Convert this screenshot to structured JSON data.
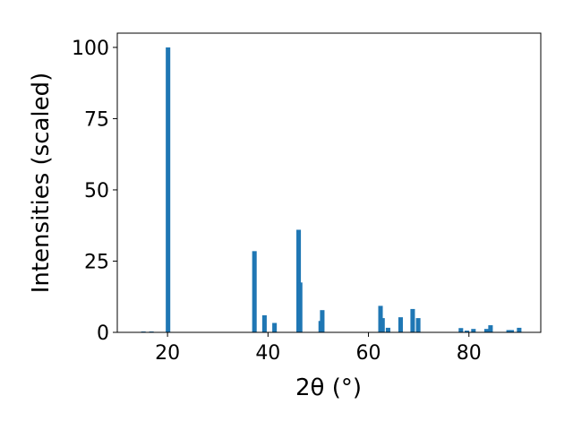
{
  "chart_data": {
    "type": "bar",
    "x_label": "2θ (°)",
    "y_label": "Intensities (scaled)",
    "x": [
      15.2,
      16.8,
      20.1,
      37.3,
      39.3,
      41.3,
      46.1,
      46.4,
      50.5,
      50.8,
      62.4,
      62.8,
      63.9,
      66.4,
      68.8,
      69.9,
      78.4,
      79.6,
      80.9,
      83.5,
      84.3,
      87.9,
      88.5,
      90.0
    ],
    "values": [
      0.3,
      0.3,
      100,
      28.5,
      6,
      3.3,
      36,
      17.5,
      4,
      7.8,
      9.3,
      5,
      1.6,
      5.3,
      8.2,
      5,
      1.5,
      0.6,
      1.2,
      1.2,
      2.5,
      0.8,
      0.8,
      1.6
    ],
    "color": "#1f77b4",
    "xlim": [
      10.0,
      94.3
    ],
    "xticks": [
      20,
      40,
      60,
      80
    ],
    "ylim": [
      0,
      105
    ],
    "yticks": [
      0,
      25,
      50,
      75,
      100
    ]
  }
}
